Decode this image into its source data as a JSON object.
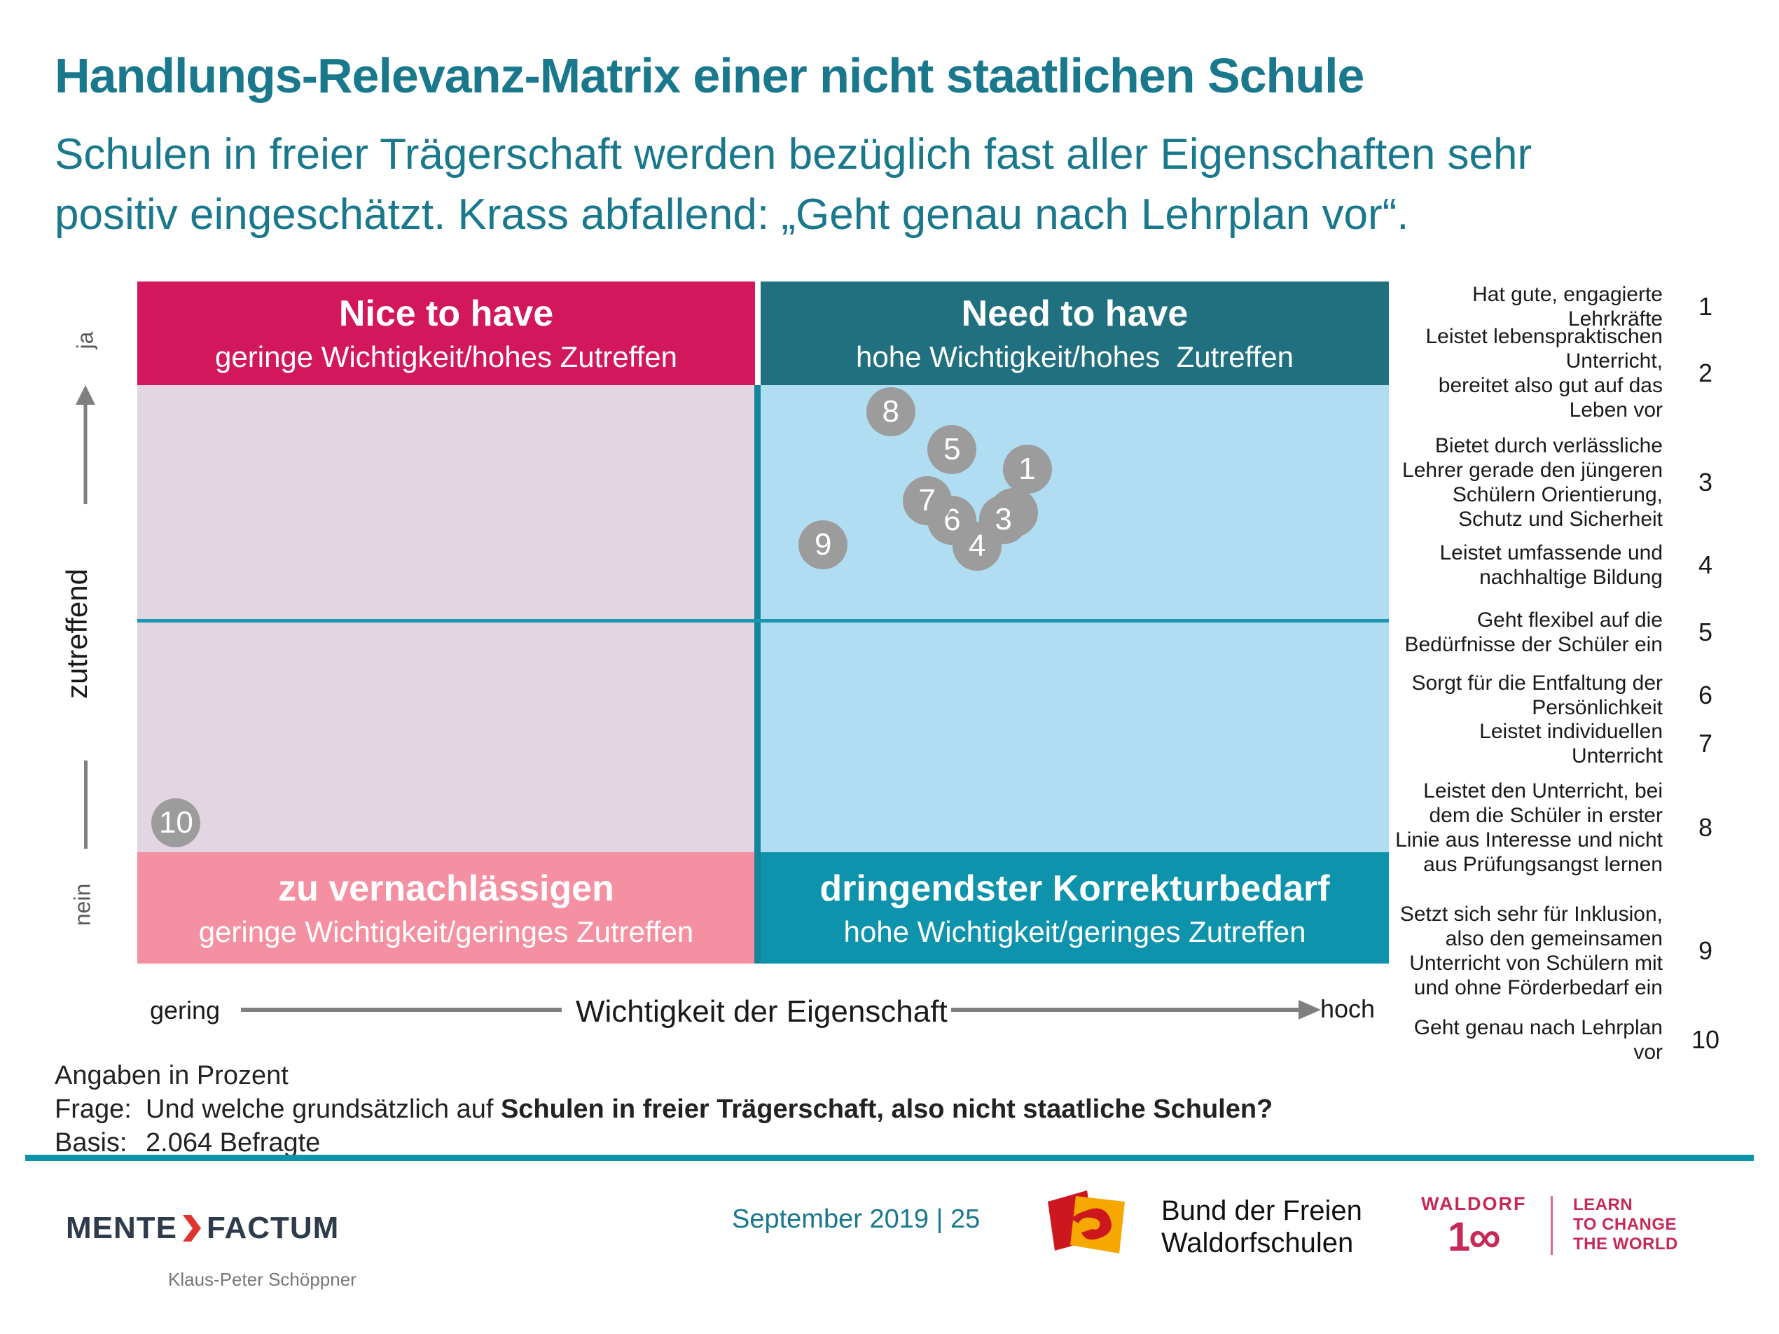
{
  "slide": {
    "title": "Handlungs-Relevanz-Matrix einer nicht staatlichen Schule",
    "subtitle": "Schulen in freier Trägerschaft werden bezüglich fast aller Eigenschaften sehr\npositiv eingeschätzt. Krass abfallend: „Geht genau nach Lehrplan vor“."
  },
  "matrix": {
    "quadrants": {
      "top_left": {
        "title": "Nice to have",
        "subtitle": "geringe Wichtigkeit/hohes Zutreffen"
      },
      "top_right": {
        "title": "Need to have",
        "subtitle": "hohe Wichtigkeit/hohes  Zutreffen"
      },
      "bottom_left": {
        "title": "zu vernachlässigen",
        "subtitle": "geringe Wichtigkeit/geringes Zutreffen"
      },
      "bottom_right": {
        "title": "dringendster Korrekturbedarf",
        "subtitle": "hohe Wichtigkeit/geringes Zutreffen"
      }
    },
    "y_axis": {
      "top_label": "ja",
      "mid_label": "zutreffend",
      "bottom_label": "nein"
    },
    "x_axis": {
      "left_label": "gering",
      "title": "Wichtigkeit der Eigenschaft",
      "right_label": "hoch"
    }
  },
  "chart_data": {
    "type": "scatter",
    "title": "Handlungs-Relevanz-Matrix einer nicht staatlichen Schule",
    "xlabel": "Wichtigkeit der Eigenschaft (gering → hoch)",
    "ylabel": "zutreffend (nein → ja)",
    "quadrant_labels": [
      "Nice to have",
      "Need to have",
      "zu vernachlässigen",
      "dringendster Korrekturbedarf"
    ],
    "marker_color": "#9C9C9C",
    "points": [
      {
        "id": 1,
        "label": "Hat gute, engagierte Lehrkräfte",
        "x_pct_from_left": 71.1,
        "y_pct_from_top": 27.5
      },
      {
        "id": 2,
        "label": "Leistet lebenspraktischen Unterricht, bereitet also gut auf das Leben vor",
        "x_pct_from_left": 70.0,
        "y_pct_from_top": 33.9
      },
      {
        "id": 3,
        "label": "Bietet durch verlässliche Lehrer gerade den jüngeren Schülern Orientierung, Schutz und Sicherheit",
        "x_pct_from_left": 69.2,
        "y_pct_from_top": 34.9
      },
      {
        "id": 4,
        "label": "Leistet umfassende und nachhaltige Bildung",
        "x_pct_from_left": 67.1,
        "y_pct_from_top": 38.8
      },
      {
        "id": 5,
        "label": "Geht flexibel auf die Bedürfnisse der Schüler ein",
        "x_pct_from_left": 65.1,
        "y_pct_from_top": 24.6
      },
      {
        "id": 6,
        "label": "Sorgt für die Entfaltung der Persönlichkeit",
        "x_pct_from_left": 65.1,
        "y_pct_from_top": 35.0
      },
      {
        "id": 7,
        "label": "Leistet individuellen Unterricht",
        "x_pct_from_left": 63.1,
        "y_pct_from_top": 32.1
      },
      {
        "id": 8,
        "label": "Leistet den Unterricht, bei dem die Schüler in erster Linie aus Interesse und nicht aus Prüfungsangst lernen",
        "x_pct_from_left": 60.2,
        "y_pct_from_top": 19.1
      },
      {
        "id": 9,
        "label": "Setzt sich sehr für Inklusion, also den gemeinsamen Unterricht von Schülern mit und ohne Förderbedarf ein",
        "x_pct_from_left": 54.8,
        "y_pct_from_top": 38.6
      },
      {
        "id": 10,
        "label": "Geht genau nach Lehrplan vor",
        "x_pct_from_left": 3.1,
        "y_pct_from_top": 79.4
      }
    ]
  },
  "legend": {
    "items": [
      {
        "num": "1",
        "text": "Hat gute, engagierte\nLehrkräfte"
      },
      {
        "num": "2",
        "text": "Leistet lebenspraktischen\nUnterricht,\nbereitet also gut auf das\nLeben vor"
      },
      {
        "num": "3",
        "text": "Bietet durch verlässliche\nLehrer gerade den jüngeren\nSchülern Orientierung,\nSchutz und Sicherheit"
      },
      {
        "num": "4",
        "text": "Leistet umfassende und\nnachhaltige Bildung"
      },
      {
        "num": "5",
        "text": "Geht flexibel auf die\nBedürfnisse der Schüler ein"
      },
      {
        "num": "6",
        "text": "Sorgt für die Entfaltung der\nPersönlichkeit"
      },
      {
        "num": "7",
        "text": "Leistet individuellen\nUnterricht"
      },
      {
        "num": "8",
        "text": "Leistet den Unterricht, bei\ndem die Schüler in erster\nLinie aus Interesse und nicht\naus Prüfungsangst lernen"
      },
      {
        "num": "9",
        "text": "Setzt sich sehr für Inklusion,\nalso den gemeinsamen\nUnterricht von Schülern mit\nund ohne Förderbedarf ein"
      },
      {
        "num": "10",
        "text": "Geht genau nach Lehrplan\nvor"
      }
    ]
  },
  "notes": {
    "angaben": "Angaben in Prozent",
    "frage_label": "Frage:",
    "frage_prefix": "Und welche grundsätzlich auf ",
    "frage_bold": "Schulen in freier Trägerschaft, also nicht staatliche Schulen?",
    "basis_label": "Basis:",
    "basis_value": "2.064 Befragte"
  },
  "footer": {
    "mente_left": "MENTE",
    "mente_right": "FACTUM",
    "mente_person": "Klaus-Peter Schöppner",
    "page_date": "September 2019 | 25",
    "bund_line1": "Bund der Freien",
    "bund_line2": "Waldorfschulen",
    "waldorf_brand": "WALDORF",
    "waldorf_one": "1",
    "waldorf_infinity": "∞",
    "waldorf_tagline": "LEARN\nTO CHANGE\nTHE WORLD"
  },
  "colors": {
    "headline_teal": "#19788C",
    "quadrant_pink": "#D3175C",
    "quadrant_dark_teal": "#20707F",
    "quadrant_lavender": "#E4D5E2",
    "quadrant_light_blue": "#B0DDF1",
    "quadrant_salmon": "#F58FA2",
    "quadrant_bright_teal": "#0E93AC",
    "marker_grey": "#9C9C9C",
    "rule_teal": "#0E93AC",
    "waldorf_crimson": "#C62957",
    "mente_navy": "#2E3B4A",
    "mente_red": "#E0352F",
    "bund_red": "#CC171E",
    "bund_orange": "#F6A800"
  }
}
